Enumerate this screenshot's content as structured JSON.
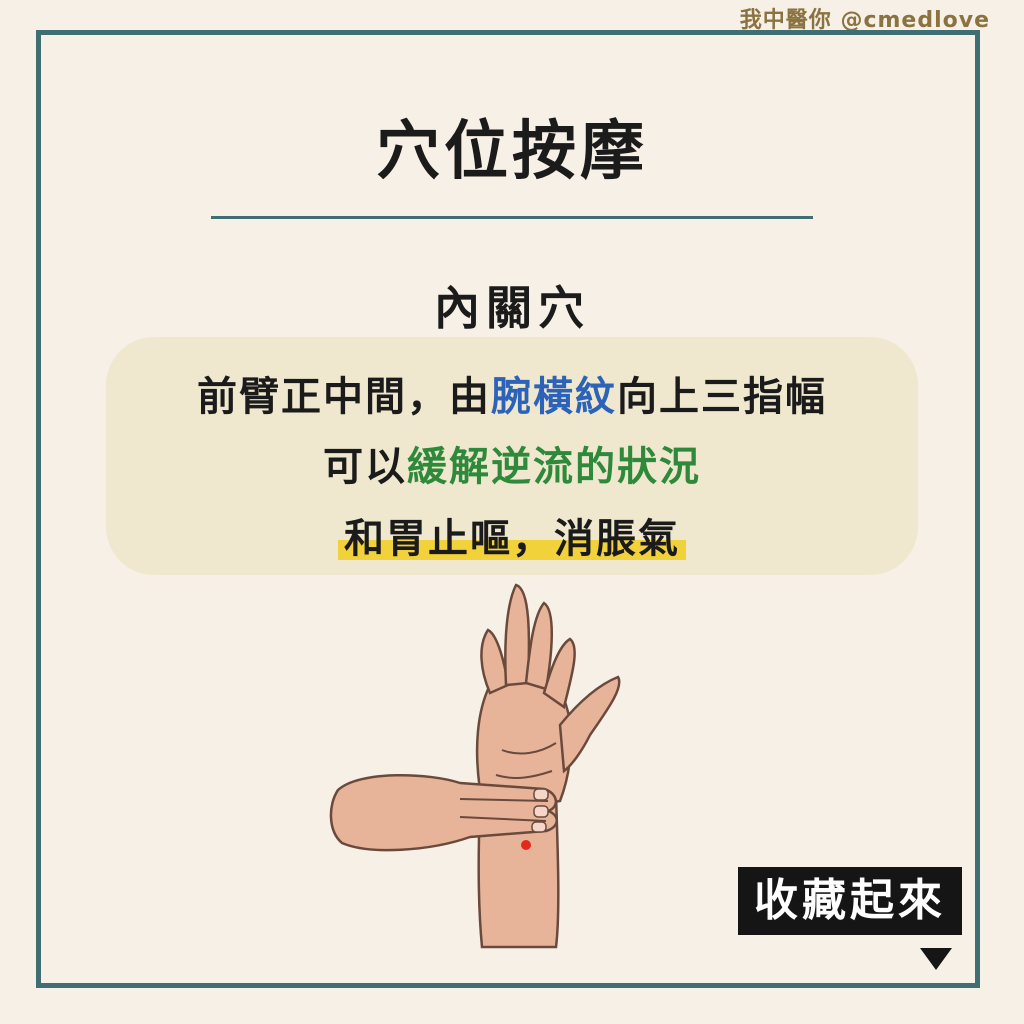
{
  "brand": "我中醫你 @cmedlove",
  "title": "穴位按摩",
  "subtitle": "內關穴",
  "lines": {
    "l1_a": "前臂正中間，由",
    "l1_b": "腕橫紋",
    "l1_c": "向上三指幅",
    "l2_a": "可以",
    "l2_b": "緩解逆流的狀況",
    "l3": "和胃止嘔，消脹氣"
  },
  "save_label": "收藏起來",
  "icons": {
    "illustration": "hand-pressing-wrist-illustration",
    "arrow": "triangle-down-icon"
  },
  "colors": {
    "frame": "#3f6f73",
    "highlight_blue": "#2c63b8",
    "highlight_green": "#2e8a3a",
    "highlight_yellow": "#f2d23a"
  }
}
